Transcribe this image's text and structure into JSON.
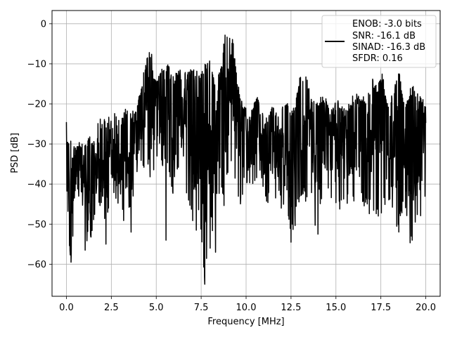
{
  "chart_data": {
    "type": "line",
    "xlabel": "Frequency [MHz]",
    "ylabel": "PSD [dB]",
    "xlim": [
      -0.8,
      20.8
    ],
    "ylim": [
      -68.0,
      3.3
    ],
    "xticks": [
      0.0,
      2.5,
      5.0,
      7.5,
      10.0,
      12.5,
      15.0,
      17.5,
      20.0
    ],
    "xtick_labels": [
      "0.0",
      "2.5",
      "5.0",
      "7.5",
      "10.0",
      "12.5",
      "15.0",
      "17.5",
      "20.0"
    ],
    "yticks": [
      0,
      -10,
      -20,
      -30,
      -40,
      -50,
      -60
    ],
    "ytick_labels": [
      "0",
      "−10",
      "−20",
      "−30",
      "−40",
      "−50",
      "−60"
    ],
    "grid": true,
    "legend_position": "top-right",
    "series": [
      {
        "color": "#000000",
        "legend_lines": [
          "ENOB: -3.0 bits",
          "SNR: -16.1 dB",
          "SINAD: -16.3 dB",
          "SFDR: 0.16"
        ],
        "envelope": {
          "x": [
            0.0,
            0.1,
            0.3,
            0.5,
            0.8,
            1.0,
            1.3,
            1.6,
            1.8,
            2.0,
            2.2,
            2.5,
            2.8,
            3.0,
            3.3,
            3.6,
            3.9,
            4.1,
            4.3,
            4.5,
            4.7,
            5.0,
            5.3,
            5.6,
            5.9,
            6.2,
            6.5,
            6.8,
            7.1,
            7.4,
            7.7,
            8.0,
            8.3,
            8.6,
            8.8,
            8.95,
            9.05,
            9.15,
            9.3,
            9.5,
            9.8,
            10.2,
            10.6,
            11.0,
            11.4,
            11.8,
            12.2,
            12.6,
            13.0,
            13.3,
            13.6,
            13.9,
            14.3,
            14.7,
            15.1,
            15.5,
            15.9,
            16.3,
            16.7,
            17.0,
            17.3,
            17.6,
            17.9,
            18.2,
            18.5,
            18.8,
            19.1,
            19.4,
            19.7,
            20.0
          ],
          "upper": [
            -24.5,
            -29,
            -28,
            -30,
            -28.5,
            -29,
            -28,
            -29,
            -22,
            -25,
            -21,
            -23,
            -22,
            -24,
            -21,
            -22,
            -20,
            -17,
            -11,
            -8,
            -6,
            -14,
            -11,
            -9,
            -13,
            -11,
            -12,
            -12,
            -10,
            -13,
            -10,
            -8,
            -15,
            -11,
            -3,
            -0.3,
            -3,
            -0.5,
            -5,
            -14,
            -20,
            -22,
            -18,
            -23,
            -20,
            -21,
            -19,
            -22,
            -13,
            -11,
            -18,
            -20,
            -17,
            -21,
            -19,
            -21,
            -18,
            -17,
            -18,
            -13,
            -15,
            -12,
            -21,
            -16,
            -11,
            -20,
            -16,
            -15,
            -18,
            -19
          ],
          "lower": [
            -47,
            -56,
            -59,
            -48,
            -45,
            -53,
            -57,
            -48,
            -46,
            -45,
            -55,
            -43,
            -47,
            -45,
            -52,
            -45,
            -45,
            -36,
            -38,
            -34,
            -40,
            -37,
            -37,
            -38,
            -43,
            -38,
            -40,
            -44,
            -55,
            -47,
            -65,
            -49,
            -57,
            -41,
            -48,
            -38,
            -36,
            -34,
            -40,
            -45,
            -45,
            -42,
            -42,
            -45,
            -45,
            -45,
            -50,
            -54,
            -44,
            -45,
            -44,
            -53,
            -44,
            -44,
            -47,
            -45,
            -46,
            -45,
            -47,
            -48,
            -50,
            -47,
            -45,
            -50,
            -52,
            -47,
            -55,
            -53,
            -49,
            -44
          ]
        },
        "dips": [
          {
            "x": 0.2,
            "y": -56.5
          },
          {
            "x": 0.25,
            "y": -59.5
          },
          {
            "x": 1.05,
            "y": -56.5
          },
          {
            "x": 2.2,
            "y": -55.0
          },
          {
            "x": 3.6,
            "y": -52.0
          },
          {
            "x": 5.55,
            "y": -54.0
          },
          {
            "x": 7.7,
            "y": -65.0
          },
          {
            "x": 8.0,
            "y": -56.0
          },
          {
            "x": 8.3,
            "y": -57.0
          },
          {
            "x": 12.5,
            "y": -54.5
          },
          {
            "x": 14.0,
            "y": -52.5
          },
          {
            "x": 19.2,
            "y": -53.0
          }
        ]
      }
    ]
  }
}
